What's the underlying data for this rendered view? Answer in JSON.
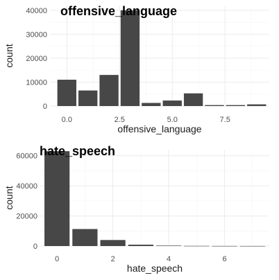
{
  "chart_data": [
    {
      "type": "bar",
      "title": "offensive_language",
      "xlabel": "offensive_language",
      "ylabel": "count",
      "x": [
        0,
        1,
        2,
        3,
        4,
        5,
        6,
        7,
        8,
        9
      ],
      "values": [
        11000,
        6500,
        13000,
        40000,
        1300,
        2300,
        5300,
        400,
        400,
        700
      ],
      "xlim": [
        -0.8,
        9.6
      ],
      "ylim": [
        0,
        42000
      ],
      "xticks": [
        0,
        2.5,
        5,
        7.5
      ],
      "xtick_labels": [
        "0.0",
        "2.5",
        "5.0",
        "7.5"
      ],
      "yticks": [
        0,
        10000,
        20000,
        30000,
        40000
      ],
      "ytick_labels": [
        "0",
        "10000",
        "20000",
        "30000",
        "40000"
      ],
      "bar_color": "#474747",
      "grid": true
    },
    {
      "type": "bar",
      "title": "hate_speech",
      "xlabel": "hate_speech",
      "ylabel": "count",
      "x": [
        0,
        1,
        2,
        3,
        4,
        5,
        6,
        7
      ],
      "values": [
        63000,
        11300,
        4000,
        900,
        300,
        100,
        50,
        30
      ],
      "xlim": [
        -0.6,
        7.6
      ],
      "ylim": [
        0,
        64000
      ],
      "xticks": [
        0,
        2,
        4,
        6
      ],
      "xtick_labels": [
        "0",
        "2",
        "4",
        "6"
      ],
      "yticks": [
        0,
        20000,
        40000,
        60000
      ],
      "ytick_labels": [
        "0",
        "20000",
        "40000",
        "60000"
      ],
      "bar_color": "#474747",
      "grid": true
    }
  ]
}
